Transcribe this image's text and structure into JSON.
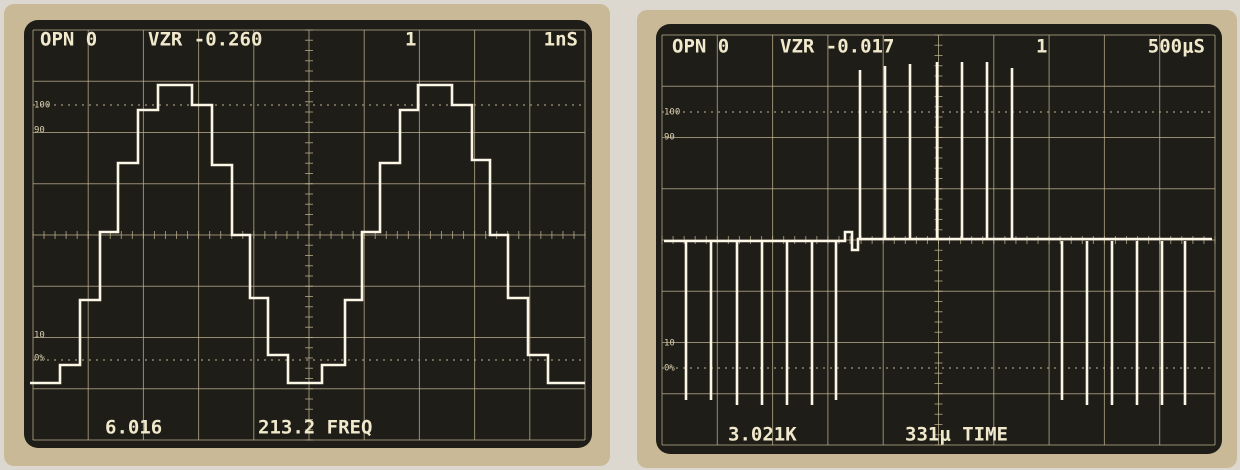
{
  "screens": [
    {
      "header": {
        "channel": "OPN 0",
        "offset": "VZR -0.260",
        "trigger": "1",
        "timebase": "1nS"
      },
      "scale": {
        "top": "100",
        "upper": "90",
        "lower": "10",
        "bottom": "0%"
      },
      "readout": {
        "left": "6.016",
        "right": "213.2 FREQ"
      }
    },
    {
      "header": {
        "channel": "OPN 0",
        "offset": "VZR -0.017",
        "trigger": "1",
        "timebase": "500μS"
      },
      "scale": {
        "top": "100",
        "upper": "90",
        "lower": "10",
        "bottom": "0%"
      },
      "readout": {
        "left": "3.021K",
        "right": "331μ TIME"
      }
    }
  ]
}
